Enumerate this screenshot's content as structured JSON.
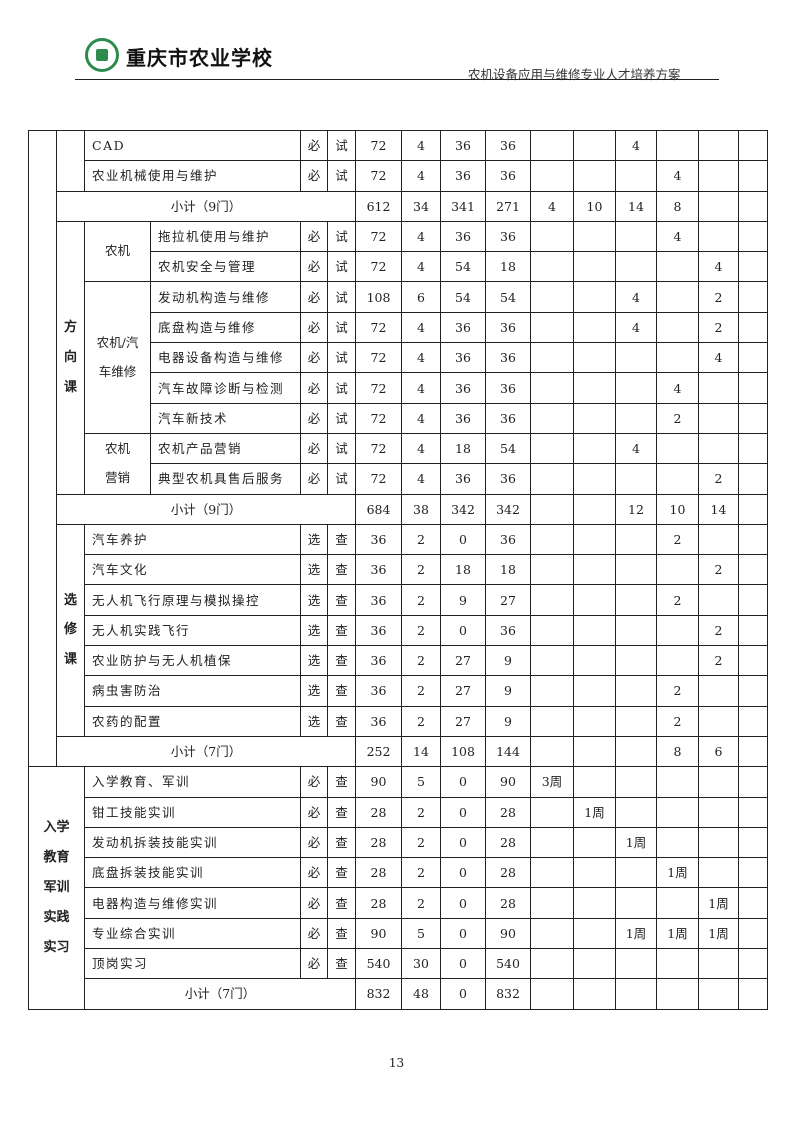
{
  "header": {
    "school_name": "重庆市农业学校",
    "document_title": "农机设备应用与维修专业人才培养方案",
    "logo_icon": "school-emblem-icon",
    "brand_color": "#2e8b4e"
  },
  "table": {
    "section_core": {
      "rows": [
        {
          "name": "CAD",
          "type": "必",
          "exam": "试",
          "hours": "72",
          "credits": "4",
          "theory": "36",
          "practice": "36",
          "sem": [
            "",
            "",
            "4",
            "",
            "",
            ""
          ]
        },
        {
          "name": "农业机械使用与维护",
          "type": "必",
          "exam": "试",
          "hours": "72",
          "credits": "4",
          "theory": "36",
          "practice": "36",
          "sem": [
            "",
            "",
            "",
            "4",
            "",
            ""
          ]
        }
      ],
      "subtotal": {
        "label": "小计（9门）",
        "hours": "612",
        "credits": "34",
        "theory": "341",
        "practice": "271",
        "sem": [
          "4",
          "10",
          "14",
          "8",
          "",
          ""
        ]
      }
    },
    "section_direction": {
      "label": [
        "方",
        "向",
        "课"
      ],
      "groups": [
        {
          "label": [
            "农机"
          ],
          "rows": [
            {
              "name": "拖拉机使用与维护",
              "type": "必",
              "exam": "试",
              "hours": "72",
              "credits": "4",
              "theory": "36",
              "practice": "36",
              "sem": [
                "",
                "",
                "",
                "4",
                "",
                ""
              ]
            },
            {
              "name": "农机安全与管理",
              "type": "必",
              "exam": "试",
              "hours": "72",
              "credits": "4",
              "theory": "54",
              "practice": "18",
              "sem": [
                "",
                "",
                "",
                "",
                "4",
                ""
              ]
            }
          ]
        },
        {
          "label": [
            "农机/汽",
            "车维修"
          ],
          "rows": [
            {
              "name": "发动机构造与维修",
              "type": "必",
              "exam": "试",
              "hours": "108",
              "credits": "6",
              "theory": "54",
              "practice": "54",
              "sem": [
                "",
                "",
                "4",
                "",
                "2",
                ""
              ]
            },
            {
              "name": "底盘构造与维修",
              "type": "必",
              "exam": "试",
              "hours": "72",
              "credits": "4",
              "theory": "36",
              "practice": "36",
              "sem": [
                "",
                "",
                "4",
                "",
                "2",
                ""
              ]
            },
            {
              "name": "电器设备构造与维修",
              "type": "必",
              "exam": "试",
              "hours": "72",
              "credits": "4",
              "theory": "36",
              "practice": "36",
              "sem": [
                "",
                "",
                "",
                "",
                "4",
                ""
              ]
            },
            {
              "name": "汽车故障诊断与检测",
              "type": "必",
              "exam": "试",
              "hours": "72",
              "credits": "4",
              "theory": "36",
              "practice": "36",
              "sem": [
                "",
                "",
                "",
                "4",
                "",
                ""
              ]
            },
            {
              "name": "汽车新技术",
              "type": "必",
              "exam": "试",
              "hours": "72",
              "credits": "4",
              "theory": "36",
              "practice": "36",
              "sem": [
                "",
                "",
                "",
                "2",
                "",
                ""
              ]
            }
          ]
        },
        {
          "label": [
            "农机",
            "营销"
          ],
          "rows": [
            {
              "name": "农机产品营销",
              "type": "必",
              "exam": "试",
              "hours": "72",
              "credits": "4",
              "theory": "18",
              "practice": "54",
              "sem": [
                "",
                "",
                "4",
                "",
                "",
                ""
              ]
            },
            {
              "name": "典型农机具售后服务",
              "type": "必",
              "exam": "试",
              "hours": "72",
              "credits": "4",
              "theory": "36",
              "practice": "36",
              "sem": [
                "",
                "",
                "",
                "",
                "2",
                ""
              ]
            }
          ]
        }
      ],
      "subtotal": {
        "label": "小计（9门）",
        "hours": "684",
        "credits": "38",
        "theory": "342",
        "practice": "342",
        "sem": [
          "",
          "",
          "12",
          "10",
          "14",
          ""
        ]
      }
    },
    "section_elective": {
      "label": [
        "选",
        "修",
        "课"
      ],
      "rows": [
        {
          "name": "汽车养护",
          "type": "选",
          "exam": "查",
          "hours": "36",
          "credits": "2",
          "theory": "0",
          "practice": "36",
          "sem": [
            "",
            "",
            "",
            "2",
            "",
            ""
          ]
        },
        {
          "name": "汽车文化",
          "type": "选",
          "exam": "查",
          "hours": "36",
          "credits": "2",
          "theory": "18",
          "practice": "18",
          "sem": [
            "",
            "",
            "",
            "",
            "2",
            ""
          ]
        },
        {
          "name": "无人机飞行原理与模拟操控",
          "type": "选",
          "exam": "查",
          "hours": "36",
          "credits": "2",
          "theory": "9",
          "practice": "27",
          "sem": [
            "",
            "",
            "",
            "2",
            "",
            ""
          ]
        },
        {
          "name": "无人机实践飞行",
          "type": "选",
          "exam": "查",
          "hours": "36",
          "credits": "2",
          "theory": "0",
          "practice": "36",
          "sem": [
            "",
            "",
            "",
            "",
            "2",
            ""
          ]
        },
        {
          "name": "农业防护与无人机植保",
          "type": "选",
          "exam": "查",
          "hours": "36",
          "credits": "2",
          "theory": "27",
          "practice": "9",
          "sem": [
            "",
            "",
            "",
            "",
            "2",
            ""
          ]
        },
        {
          "name": "病虫害防治",
          "type": "选",
          "exam": "查",
          "hours": "36",
          "credits": "2",
          "theory": "27",
          "practice": "9",
          "sem": [
            "",
            "",
            "",
            "2",
            "",
            ""
          ]
        },
        {
          "name": "农药的配置",
          "type": "选",
          "exam": "查",
          "hours": "36",
          "credits": "2",
          "theory": "27",
          "practice": "9",
          "sem": [
            "",
            "",
            "",
            "2",
            "",
            ""
          ]
        }
      ],
      "subtotal": {
        "label": "小计（7门）",
        "hours": "252",
        "credits": "14",
        "theory": "108",
        "practice": "144",
        "sem": [
          "",
          "",
          "",
          "8",
          "6",
          ""
        ]
      }
    },
    "section_practice": {
      "label": [
        "入学",
        "教育",
        "军训",
        "实践",
        "实习"
      ],
      "rows": [
        {
          "name": "入学教育、军训",
          "type": "必",
          "exam": "查",
          "hours": "90",
          "credits": "5",
          "theory": "0",
          "practice": "90",
          "sem": [
            "3周",
            "",
            "",
            "",
            "",
            ""
          ]
        },
        {
          "name": "钳工技能实训",
          "type": "必",
          "exam": "查",
          "hours": "28",
          "credits": "2",
          "theory": "0",
          "practice": "28",
          "sem": [
            "",
            "1周",
            "",
            "",
            "",
            ""
          ]
        },
        {
          "name": "发动机拆装技能实训",
          "type": "必",
          "exam": "查",
          "hours": "28",
          "credits": "2",
          "theory": "0",
          "practice": "28",
          "sem": [
            "",
            "",
            "1周",
            "",
            "",
            ""
          ]
        },
        {
          "name": "底盘拆装技能实训",
          "type": "必",
          "exam": "查",
          "hours": "28",
          "credits": "2",
          "theory": "0",
          "practice": "28",
          "sem": [
            "",
            "",
            "",
            "1周",
            "",
            ""
          ]
        },
        {
          "name": "电器构造与维修实训",
          "type": "必",
          "exam": "查",
          "hours": "28",
          "credits": "2",
          "theory": "0",
          "practice": "28",
          "sem": [
            "",
            "",
            "",
            "",
            "1周",
            ""
          ]
        },
        {
          "name": "专业综合实训",
          "type": "必",
          "exam": "查",
          "hours": "90",
          "credits": "5",
          "theory": "0",
          "practice": "90",
          "sem": [
            "",
            "",
            "1周",
            "1周",
            "1周",
            ""
          ]
        },
        {
          "name": "顶岗实习",
          "type": "必",
          "exam": "查",
          "hours": "540",
          "credits": "30",
          "theory": "0",
          "practice": "540",
          "sem": [
            "",
            "",
            "",
            "",
            "",
            ""
          ]
        }
      ],
      "subtotal": {
        "label": "小计（7门）",
        "hours": "832",
        "credits": "48",
        "theory": "0",
        "practice": "832",
        "sem": [
          "",
          "",
          "",
          "",
          "",
          ""
        ]
      }
    }
  },
  "footer": {
    "page_number": "13"
  }
}
